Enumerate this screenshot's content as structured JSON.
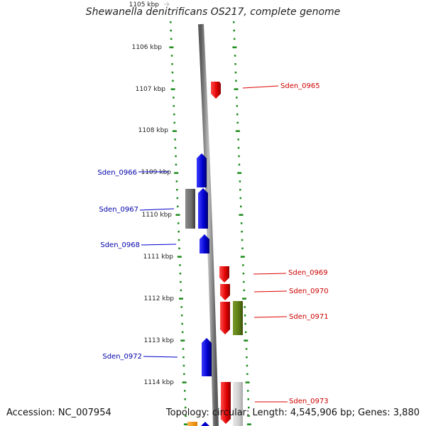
{
  "title": "Shewanella denitrificans OS217, complete genome",
  "accession": "Accession: NC_007954",
  "summary": "Topology: circular; Length: 4,545,906 bp; Genes: 3,880",
  "kbp_labels": [
    "1105 kbp",
    "1106 kbp",
    "1107 kbp",
    "1108 kbp",
    "1109 kbp",
    "1110 kbp",
    "1111 kbp",
    "1112 kbp",
    "1113 kbp",
    "1114 kbp"
  ],
  "genes": [
    {
      "name": "Sden_0965",
      "strand": "+",
      "color": "#e00000"
    },
    {
      "name": "Sden_0966",
      "strand": "-",
      "color": "#0000cc"
    },
    {
      "name": "Sden_0967",
      "strand": "-",
      "color": "#0000cc"
    },
    {
      "name": "Sden_0968",
      "strand": "-",
      "color": "#0000cc"
    },
    {
      "name": "Sden_0969",
      "strand": "+",
      "color": "#e00000"
    },
    {
      "name": "Sden_0970",
      "strand": "+",
      "color": "#e00000"
    },
    {
      "name": "Sden_0971",
      "strand": "+",
      "color": "#e00000"
    },
    {
      "name": "Sden_0972",
      "strand": "-",
      "color": "#0000cc"
    },
    {
      "name": "Sden_0973",
      "strand": "+",
      "color": "#e00000"
    }
  ],
  "colors": {
    "forward": "#e00000",
    "reverse": "#0000cc",
    "scale": "#1a8a1a",
    "feature_gray": "#6e6e6e",
    "feature_olive": "#5a7a14",
    "feature_orange": "#ff9900"
  }
}
